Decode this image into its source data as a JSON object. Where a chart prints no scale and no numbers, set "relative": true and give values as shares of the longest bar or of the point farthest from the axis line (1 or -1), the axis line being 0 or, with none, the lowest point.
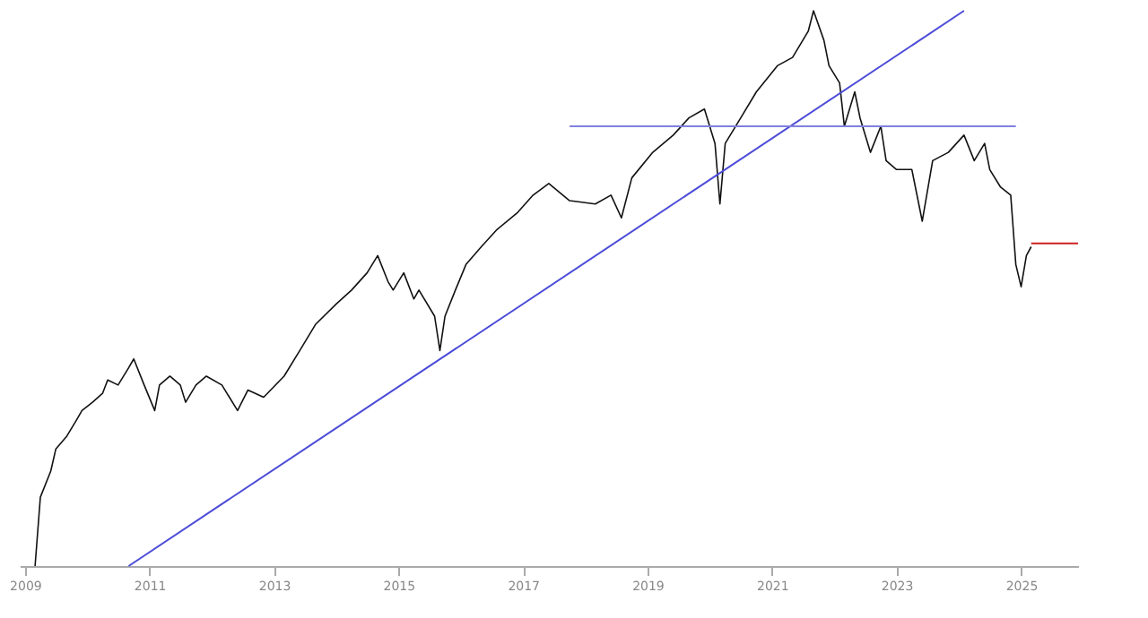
{
  "chart_data": {
    "type": "line",
    "relative": true,
    "tick_labels": "x",
    "xlim": [
      "2008-12",
      "2025-12"
    ],
    "xticks": [
      "2009",
      "2011",
      "2013",
      "2015",
      "2017",
      "2019",
      "2021",
      "2023",
      "2025"
    ],
    "series": [
      {
        "color": "#111111",
        "x": [
          "2009-03",
          "2009-04",
          "2009-06",
          "2009-07",
          "2009-09",
          "2009-11",
          "2009-12",
          "2010-02",
          "2010-04",
          "2010-05",
          "2010-07",
          "2010-09",
          "2010-10",
          "2010-12",
          "2011-02",
          "2011-03",
          "2011-05",
          "2011-07",
          "2011-08",
          "2011-10",
          "2011-12",
          "2012-03",
          "2012-06",
          "2012-08",
          "2012-11",
          "2013-03",
          "2013-06",
          "2013-09",
          "2014-01",
          "2014-04",
          "2014-07",
          "2014-09",
          "2014-11",
          "2014-12",
          "2015-02",
          "2015-04",
          "2015-05",
          "2015-08",
          "2015-09",
          "2015-10",
          "2015-12",
          "2016-02",
          "2016-05",
          "2016-08",
          "2016-12",
          "2017-03",
          "2017-06",
          "2017-10",
          "2018-03",
          "2018-06",
          "2018-08",
          "2018-10",
          "2019-02",
          "2019-06",
          "2019-09",
          "2019-12",
          "2020-02",
          "2020-03",
          "2020-04",
          "2020-07",
          "2020-10",
          "2021-02",
          "2021-05",
          "2021-08",
          "2021-09",
          "2021-11",
          "2021-12",
          "2022-02",
          "2022-03",
          "2022-05",
          "2022-06",
          "2022-08",
          "2022-10",
          "2022-11",
          "2023-01",
          "2023-04",
          "2023-06",
          "2023-08",
          "2023-11",
          "2024-02",
          "2024-04",
          "2024-06",
          "2024-07",
          "2024-09",
          "2024-11",
          "2024-12",
          "2025-01",
          "2025-02",
          "2025-03"
        ],
        "values": [
          0,
          0.124,
          0.171,
          0.211,
          0.233,
          0.264,
          0.28,
          0.295,
          0.311,
          0.335,
          0.326,
          0.357,
          0.373,
          0.326,
          0.28,
          0.326,
          0.342,
          0.326,
          0.295,
          0.326,
          0.342,
          0.326,
          0.28,
          0.317,
          0.304,
          0.342,
          0.388,
          0.435,
          0.472,
          0.497,
          0.528,
          0.559,
          0.512,
          0.497,
          0.528,
          0.481,
          0.497,
          0.45,
          0.388,
          0.45,
          0.497,
          0.543,
          0.575,
          0.606,
          0.637,
          0.668,
          0.689,
          0.658,
          0.652,
          0.668,
          0.627,
          0.699,
          0.745,
          0.776,
          0.807,
          0.823,
          0.761,
          0.652,
          0.761,
          0.807,
          0.854,
          0.901,
          0.916,
          0.963,
          1,
          0.947,
          0.901,
          0.87,
          0.792,
          0.854,
          0.807,
          0.745,
          0.792,
          0.73,
          0.714,
          0.714,
          0.621,
          0.73,
          0.745,
          0.776,
          0.73,
          0.761,
          0.714,
          0.683,
          0.668,
          0.543,
          0.503,
          0.559,
          0.575
        ]
      },
      {
        "color": "#4b4bd8",
        "x": [
          "2010-09",
          "2024-02"
        ],
        "values": [
          0,
          1
        ]
      },
      {
        "color": "#8080e0",
        "x": [
          "2017-10",
          "2024-12"
        ],
        "values": [
          0.792,
          0.792
        ]
      },
      {
        "color": "#cc2020",
        "x": [
          "2025-03",
          "2025-12"
        ],
        "values": [
          0.581,
          0.581
        ]
      }
    ]
  }
}
